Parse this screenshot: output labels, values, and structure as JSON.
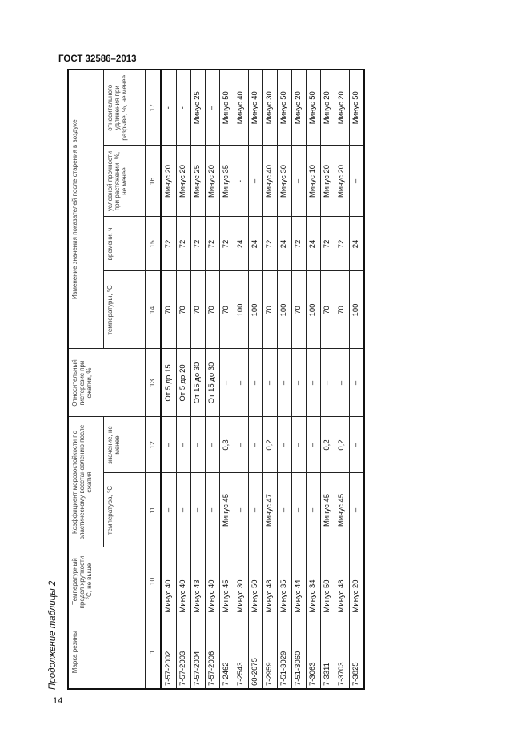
{
  "header": "ГОСТ 32586–2013",
  "page_number": "14",
  "caption": "Продолжение таблицы 2",
  "table": {
    "headers": {
      "c1": "Марка резины",
      "c10": "Температурный предел хрупкости, °С, не выше",
      "g11": "Коэффициент морозостойкости по эластическому восстановлению после сжатия",
      "c11": "температура, °С",
      "c12": "значение, не менее",
      "c13": "Относительный гистерезис при сжатии, %",
      "g14": "Изменение значения показателей после старения в воздухе",
      "c14": "температуры, °С",
      "c15": "времени, ч",
      "c16": "условной прочности при растяжении, %, не менее",
      "c17": "относительного удлинения при разрыве, %, не менее"
    },
    "numbers": [
      "1",
      "10",
      "11",
      "12",
      "13",
      "14",
      "15",
      "16",
      "17"
    ],
    "rows": [
      [
        "7-57-2002",
        "Минус 40",
        "–",
        "–",
        "От 5 до 15",
        "70",
        "72",
        "Минус 20",
        "-"
      ],
      [
        "7-57-2003",
        "Минус 40",
        "–",
        "–",
        "От 5 до 20",
        "70",
        "72",
        "Минус 20",
        "-"
      ],
      [
        "7-57-2004",
        "Минус 43",
        "–",
        "–",
        "От 15 до 30",
        "70",
        "72",
        "Минус 25",
        "Минус 25"
      ],
      [
        "7-57-2006",
        "Минус 40",
        "–",
        "–",
        "От 15 до 30",
        "70",
        "72",
        "Минус 20",
        "–"
      ],
      [
        "7-2462",
        "Минус 45",
        "Минус 45",
        "0,3",
        "–",
        "70",
        "72",
        "Минус 35",
        "Минус 50"
      ],
      [
        "7-2543",
        "Минус 30",
        "–",
        "–",
        "–",
        "100",
        "24",
        "-",
        "Минус 40"
      ],
      [
        "60-2675",
        "Минус 50",
        "–",
        "–",
        "–",
        "100",
        "24",
        "–",
        "Минус 40"
      ],
      [
        "7-2959",
        "Минус 48",
        "Минус 47",
        "0,2",
        "–",
        "70",
        "72",
        "Минус 40",
        "Минус 30"
      ],
      [
        "7-51-3029",
        "Минус 35",
        "–",
        "–",
        "–",
        "100",
        "24",
        "Минус 30",
        "Минус 50"
      ],
      [
        "7-51-3060",
        "Минус 44",
        "–",
        "–",
        "–",
        "70",
        "72",
        "–",
        "Минус 20"
      ],
      [
        "7-3063",
        "Минус 34",
        "–",
        "–",
        "–",
        "100",
        "24",
        "Минус 10",
        "Минус 50"
      ],
      [
        "7-3311",
        "Минус 50",
        "Минус 45",
        "0,2",
        "–",
        "70",
        "72",
        "Минус 20",
        "Минус 20"
      ],
      [
        "7-3703",
        "Минус 48",
        "Минус 45",
        "0,2",
        "–",
        "70",
        "72",
        "Минус 20",
        "Минус 20"
      ],
      [
        "7-3825",
        "Минус 20",
        "–",
        "–",
        "–",
        "100",
        "24",
        "–",
        "Минус 50"
      ]
    ]
  }
}
